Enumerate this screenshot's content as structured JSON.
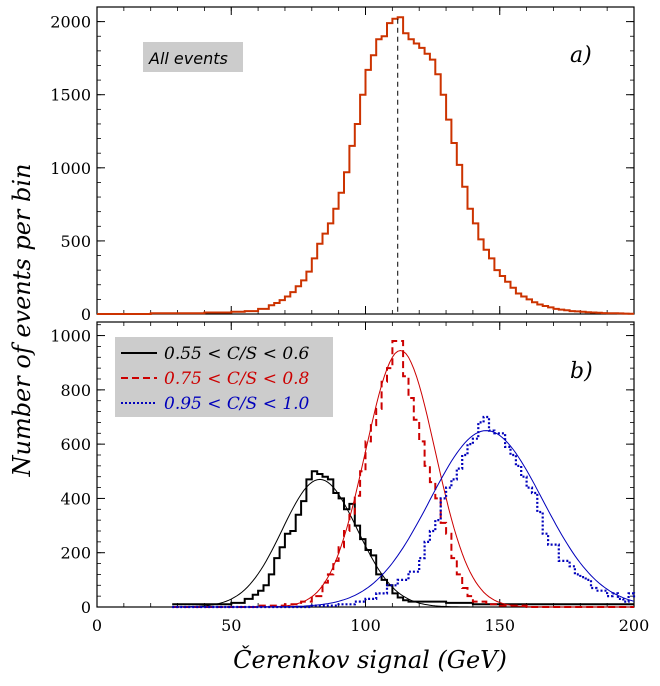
{
  "figure": {
    "ylabel": "Number of events per bin",
    "xlabel": "Čerenkov signal (GeV)"
  },
  "chart_data": [
    {
      "type": "line",
      "panel_label": "a)",
      "annotation": "All events",
      "xlim": [
        0,
        200
      ],
      "ylim": [
        0,
        2100
      ],
      "yticks": [
        0,
        500,
        1000,
        1500,
        2000
      ],
      "xticks": [
        0,
        50,
        100,
        150,
        200
      ],
      "color": "#cc3300",
      "marker_line_x": 112,
      "series": [
        {
          "x": [
            0,
            10,
            20,
            30,
            40,
            50,
            55,
            60,
            64,
            66,
            68,
            70,
            72,
            74,
            76,
            78,
            80,
            82,
            84,
            86,
            88,
            90,
            92,
            94,
            96,
            98,
            100,
            102,
            104,
            106,
            108,
            110,
            112,
            114,
            116,
            118,
            120,
            122,
            124,
            126,
            128,
            130,
            132,
            134,
            136,
            138,
            140,
            142,
            144,
            146,
            148,
            150,
            152,
            154,
            156,
            158,
            160,
            162,
            164,
            166,
            168,
            170,
            172,
            174,
            176,
            178,
            180,
            182,
            184,
            186,
            188,
            190,
            192,
            194,
            196,
            198,
            200
          ],
          "values": [
            0,
            0,
            5,
            5,
            10,
            15,
            20,
            35,
            60,
            75,
            95,
            120,
            150,
            190,
            230,
            290,
            380,
            480,
            550,
            620,
            720,
            830,
            970,
            1150,
            1300,
            1500,
            1670,
            1770,
            1880,
            1900,
            1990,
            2020,
            2030,
            1920,
            1880,
            1850,
            1820,
            1780,
            1740,
            1640,
            1500,
            1330,
            1170,
            1020,
            870,
            720,
            620,
            510,
            440,
            380,
            300,
            260,
            220,
            180,
            140,
            120,
            100,
            80,
            65,
            55,
            45,
            35,
            30,
            25,
            20,
            18,
            15,
            12,
            10,
            8,
            6,
            5,
            5,
            4,
            3,
            2,
            2
          ]
        }
      ]
    },
    {
      "type": "line",
      "panel_label": "b)",
      "xlim": [
        0,
        200
      ],
      "ylim": [
        0,
        1050
      ],
      "yticks": [
        0,
        200,
        400,
        600,
        800,
        1000
      ],
      "xticks": [
        0,
        50,
        100,
        150,
        200
      ],
      "legend": "top-left",
      "series": [
        {
          "name": "0.55 < C/S < 0.6",
          "color": "#000000",
          "dash": "solid",
          "x": [
            28,
            40,
            50,
            55,
            58,
            60,
            62,
            64,
            66,
            68,
            70,
            72,
            74,
            76,
            78,
            80,
            82,
            84,
            86,
            88,
            90,
            92,
            94,
            96,
            98,
            100,
            102,
            104,
            106,
            108,
            110,
            112,
            114,
            116,
            120,
            130,
            140,
            150,
            160,
            170,
            180,
            190,
            200
          ],
          "values": [
            10,
            10,
            15,
            30,
            45,
            60,
            80,
            120,
            180,
            220,
            270,
            280,
            340,
            390,
            470,
            500,
            490,
            480,
            470,
            420,
            400,
            360,
            380,
            300,
            250,
            210,
            190,
            120,
            100,
            80,
            50,
            35,
            25,
            20,
            20,
            15,
            10,
            10,
            10,
            10,
            10,
            10,
            10
          ],
          "fit": {
            "mu": 83,
            "sigma": 14,
            "amp": 470
          }
        },
        {
          "name": "0.75 < C/S < 0.8",
          "color": "#cc0000",
          "dash": "dashed",
          "x": [
            28,
            60,
            70,
            76,
            80,
            84,
            86,
            88,
            90,
            92,
            94,
            96,
            98,
            100,
            102,
            104,
            106,
            108,
            110,
            112,
            114,
            116,
            118,
            120,
            122,
            124,
            126,
            128,
            130,
            132,
            134,
            136,
            138,
            140,
            145,
            150,
            160,
            200
          ],
          "values": [
            0,
            5,
            10,
            20,
            40,
            90,
            120,
            170,
            220,
            280,
            340,
            410,
            500,
            610,
            670,
            730,
            830,
            880,
            980,
            980,
            850,
            770,
            690,
            610,
            520,
            460,
            400,
            310,
            270,
            180,
            120,
            70,
            40,
            20,
            10,
            5,
            0,
            0
          ],
          "fit": {
            "mu": 113,
            "sigma": 13,
            "amp": 945
          }
        },
        {
          "name": "0.95 < C/S < 1.0",
          "color": "#0000bb",
          "dash": "dotted",
          "x": [
            28,
            80,
            90,
            96,
            100,
            104,
            108,
            112,
            116,
            120,
            122,
            124,
            126,
            128,
            130,
            132,
            134,
            136,
            138,
            140,
            142,
            144,
            146,
            148,
            150,
            152,
            154,
            156,
            158,
            160,
            162,
            164,
            166,
            168,
            170,
            172,
            174,
            176,
            178,
            180,
            182,
            184,
            186,
            188,
            190,
            192,
            194,
            196,
            198,
            200
          ],
          "values": [
            0,
            5,
            10,
            20,
            30,
            50,
            80,
            100,
            130,
            180,
            240,
            280,
            320,
            400,
            440,
            470,
            510,
            560,
            600,
            620,
            680,
            700,
            650,
            640,
            640,
            590,
            560,
            520,
            480,
            440,
            420,
            350,
            270,
            230,
            230,
            170,
            170,
            150,
            120,
            110,
            100,
            70,
            60,
            60,
            40,
            50,
            30,
            20,
            50,
            30
          ],
          "fit": {
            "mu": 145,
            "sigma": 21,
            "amp": 650
          }
        }
      ]
    }
  ]
}
